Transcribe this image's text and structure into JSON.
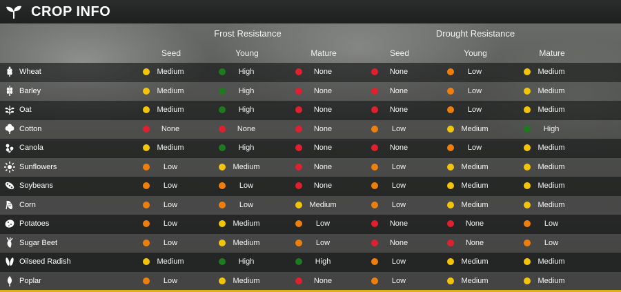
{
  "title": "CROP INFO",
  "groups": {
    "frost": "Frost Resistance",
    "drought": "Drought Resistance"
  },
  "columns": [
    "Seed",
    "Young",
    "Mature",
    "Seed",
    "Young",
    "Mature"
  ],
  "colors": {
    "Medium": "#f2c40a",
    "High": "#1d7a1d",
    "None": "#e0202e",
    "Low": "#ee7f0c"
  },
  "crops": [
    {
      "name": "Wheat",
      "icon": "wheat-icon",
      "values": [
        "Medium",
        "High",
        "None",
        "None",
        "Low",
        "Medium"
      ]
    },
    {
      "name": "Barley",
      "icon": "barley-icon",
      "values": [
        "Medium",
        "High",
        "None",
        "None",
        "Low",
        "Medium"
      ]
    },
    {
      "name": "Oat",
      "icon": "oat-icon",
      "values": [
        "Medium",
        "High",
        "None",
        "None",
        "Low",
        "Medium"
      ]
    },
    {
      "name": "Cotton",
      "icon": "cotton-icon",
      "values": [
        "None",
        "None",
        "None",
        "Low",
        "Medium",
        "High"
      ]
    },
    {
      "name": "Canola",
      "icon": "canola-icon",
      "values": [
        "Medium",
        "High",
        "None",
        "None",
        "Low",
        "Medium"
      ]
    },
    {
      "name": "Sunflowers",
      "icon": "sunflower-icon",
      "values": [
        "Low",
        "Medium",
        "None",
        "Low",
        "Medium",
        "Medium"
      ]
    },
    {
      "name": "Soybeans",
      "icon": "soybean-icon",
      "values": [
        "Low",
        "Low",
        "None",
        "Low",
        "Medium",
        "Medium"
      ]
    },
    {
      "name": "Corn",
      "icon": "corn-icon",
      "values": [
        "Low",
        "Low",
        "Medium",
        "Low",
        "Medium",
        "Medium"
      ]
    },
    {
      "name": "Potatoes",
      "icon": "potato-icon",
      "values": [
        "Low",
        "Medium",
        "Low",
        "None",
        "None",
        "Low"
      ]
    },
    {
      "name": "Sugar Beet",
      "icon": "sugar-beet-icon",
      "values": [
        "Low",
        "Medium",
        "Low",
        "None",
        "None",
        "Low"
      ]
    },
    {
      "name": "Oilseed Radish",
      "icon": "oilseed-radish-icon",
      "values": [
        "Medium",
        "High",
        "High",
        "Low",
        "Medium",
        "Medium"
      ]
    },
    {
      "name": "Poplar",
      "icon": "poplar-icon",
      "values": [
        "Low",
        "Medium",
        "None",
        "Low",
        "Medium",
        "Medium"
      ]
    }
  ]
}
